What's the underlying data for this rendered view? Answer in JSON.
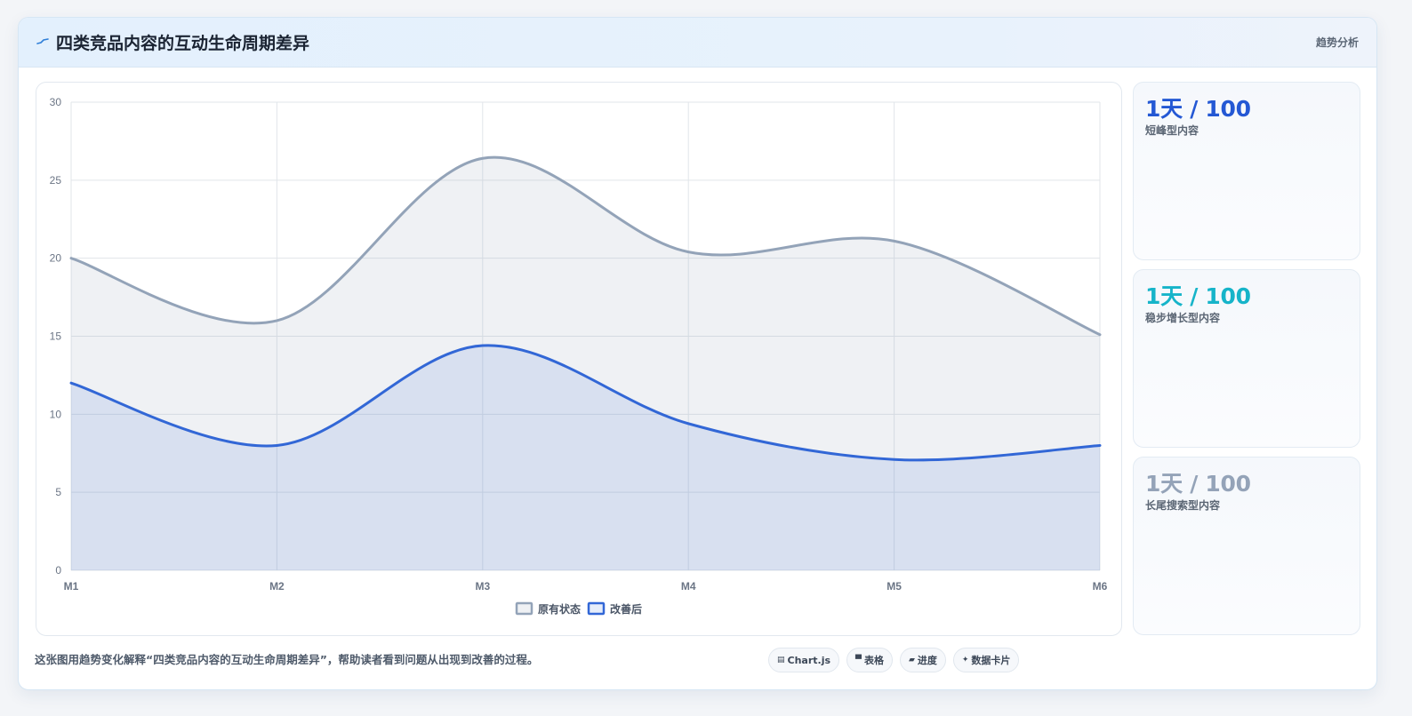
{
  "header": {
    "title": "四类竞品内容的互动生命周期差异",
    "tag": "趋势分析",
    "icon": "pulse-icon"
  },
  "chart_data": {
    "type": "area",
    "categories": [
      "M1",
      "M2",
      "M3",
      "M4",
      "M5",
      "M6"
    ],
    "series": [
      {
        "name": "原有状态",
        "values": [
          20,
          16,
          26.4,
          20.4,
          21.1,
          15.1
        ],
        "color": "#93a3b8"
      },
      {
        "name": "改善后",
        "values": [
          12,
          8,
          14.4,
          9.4,
          7.1,
          8
        ],
        "color": "#3267d6"
      }
    ],
    "ylim": [
      0,
      30
    ],
    "yticks": [
      0,
      5,
      10,
      15,
      20,
      25,
      30
    ],
    "grid": true,
    "legend": "bottom-center"
  },
  "stats": [
    {
      "value": "1天 / 100",
      "label": "短峰型内容",
      "color": "#2458d4"
    },
    {
      "value": "1天 / 100",
      "label": "稳步增长型内容",
      "color": "#16b4c9"
    },
    {
      "value": "1天 / 100",
      "label": "长尾搜索型内容",
      "color": "#94a3b8"
    }
  ],
  "footer": {
    "note": "这张图用趋势变化解释“四类竞品内容的互动生命周期差异”，帮助读者看到问题从出现到改善的过程。",
    "pills": [
      {
        "label": "Chart.js",
        "icon": "chart-icon",
        "glyph": "▤"
      },
      {
        "label": "表格",
        "icon": "table-icon",
        "glyph": "▀"
      },
      {
        "label": "进度",
        "icon": "progress-icon",
        "glyph": "▰"
      },
      {
        "label": "数据卡片",
        "icon": "sparkle-icon",
        "glyph": "✦"
      }
    ]
  }
}
